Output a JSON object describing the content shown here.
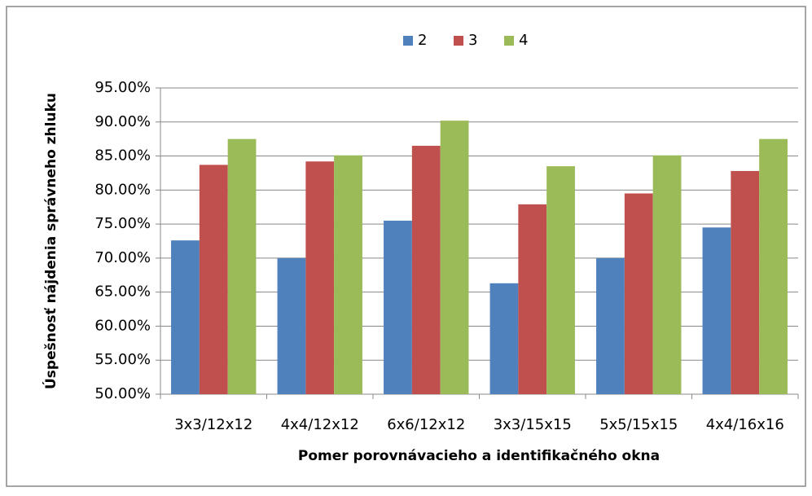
{
  "chart_data": {
    "type": "bar",
    "x_label": "Pomer porovnávacieho a identifikačného okna",
    "y_label": "Úspešnosť nájdenia správneho zhluku",
    "categories": [
      "3x3/12x12",
      "4x4/12x12",
      "6x6/12x12",
      "3x3/15x15",
      "5x5/15x15",
      "4x4/16x16"
    ],
    "series": [
      {
        "name": "2",
        "color": "#4f81bd",
        "values": [
          72.6,
          70.0,
          75.5,
          66.3,
          70.0,
          74.5
        ]
      },
      {
        "name": "3",
        "color": "#c0504d",
        "values": [
          83.7,
          84.2,
          86.5,
          77.9,
          79.5,
          82.8
        ]
      },
      {
        "name": "4",
        "color": "#9bbb59",
        "values": [
          87.5,
          85.1,
          90.2,
          83.5,
          85.1,
          87.5
        ]
      }
    ],
    "ylim": [
      50,
      95
    ],
    "yticks": [
      {
        "value": 50,
        "label": "50.00%"
      },
      {
        "value": 55,
        "label": "55.00%"
      },
      {
        "value": 60,
        "label": "60.00%"
      },
      {
        "value": 65,
        "label": "65.00%"
      },
      {
        "value": 70,
        "label": "70.00%"
      },
      {
        "value": 75,
        "label": "75.00%"
      },
      {
        "value": 80,
        "label": "80.00%"
      },
      {
        "value": 85,
        "label": "85.00%"
      },
      {
        "value": 90,
        "label": "90.00%"
      },
      {
        "value": 95,
        "label": "95.00%"
      }
    ],
    "grid": true,
    "legend": "top"
  }
}
